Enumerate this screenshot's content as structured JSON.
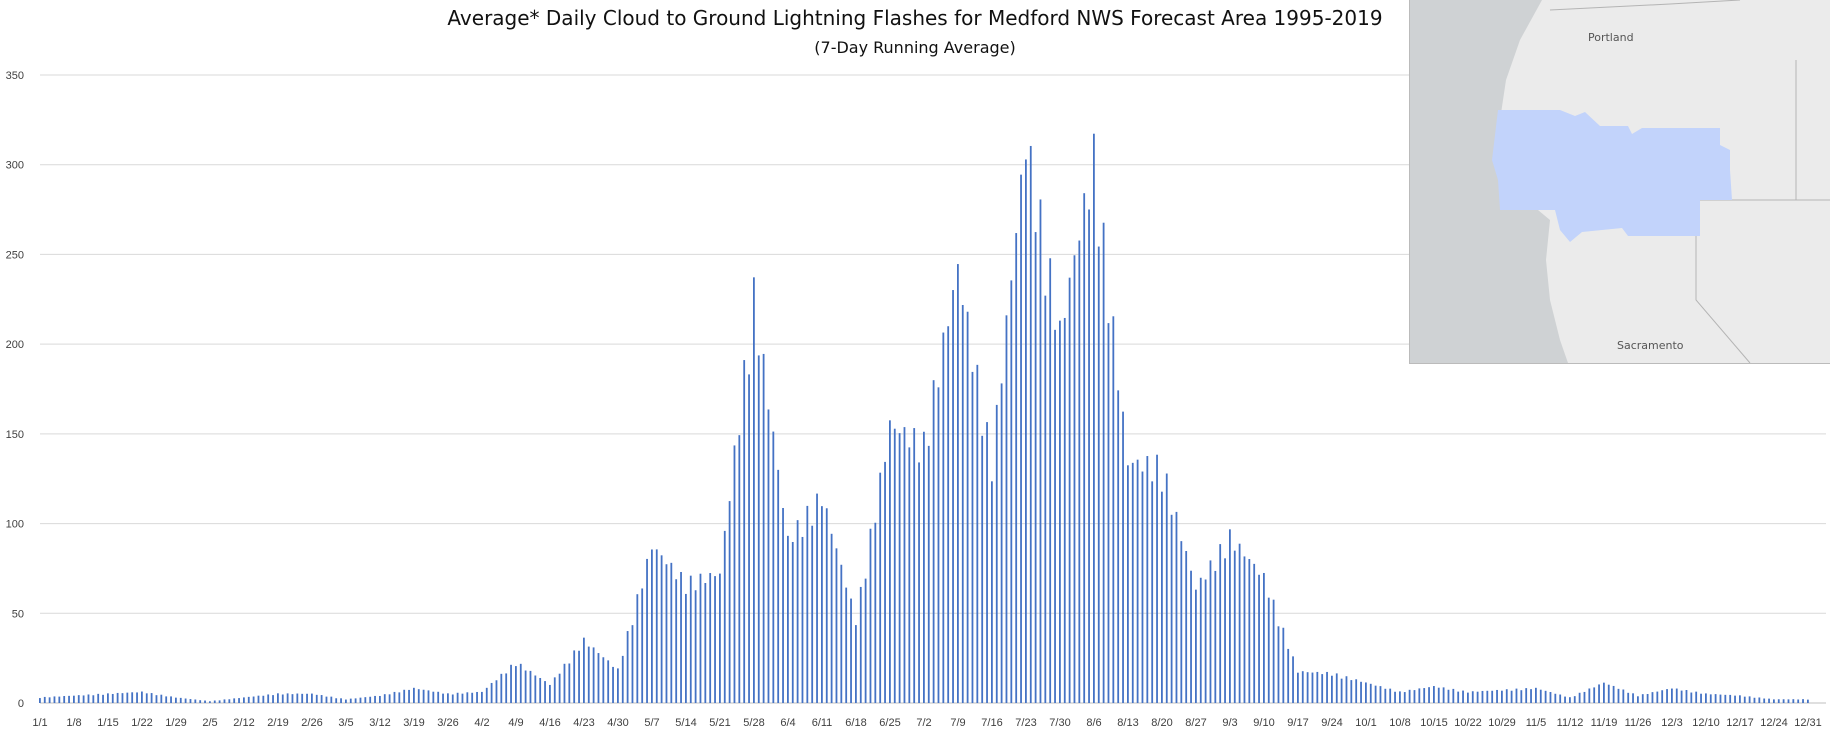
{
  "chart_data": {
    "type": "bar",
    "title": "Average* Daily Cloud to Ground Lightning Flashes for Medford NWS Forecast Area 1995-2019",
    "subtitle": "(7-Day Running Average)",
    "xlabel": "",
    "ylabel": "",
    "ylim": [
      0,
      350
    ],
    "yticks": [
      0,
      50,
      100,
      150,
      200,
      250,
      300,
      350
    ],
    "grid": true,
    "legend": "none",
    "bar_color": "#4472c4",
    "x_tick_labels": [
      "1/1",
      "1/8",
      "1/15",
      "1/22",
      "1/29",
      "2/5",
      "2/12",
      "2/19",
      "2/26",
      "3/5",
      "3/12",
      "3/19",
      "3/26",
      "4/2",
      "4/9",
      "4/16",
      "4/23",
      "4/30",
      "5/7",
      "5/14",
      "5/21",
      "5/28",
      "6/4",
      "6/11",
      "6/18",
      "6/25",
      "7/2",
      "7/9",
      "7/16",
      "7/23",
      "7/30",
      "8/6",
      "8/13",
      "8/20",
      "8/27",
      "9/3",
      "9/10",
      "9/17",
      "9/24",
      "10/1",
      "10/8",
      "10/15",
      "10/22",
      "10/29",
      "11/5",
      "11/12",
      "11/19",
      "11/26",
      "12/3",
      "12/10",
      "12/17",
      "12/24",
      "12/31"
    ],
    "weekly_values": [
      3,
      4,
      5,
      6,
      3,
      1,
      3,
      5,
      5,
      2,
      4,
      8,
      5,
      6,
      22,
      10,
      34,
      18,
      85,
      65,
      70,
      220,
      88,
      112,
      45,
      150,
      140,
      235,
      130,
      305,
      200,
      295,
      130,
      128,
      62,
      90,
      68,
      17,
      16,
      11,
      6,
      9,
      6,
      7,
      8,
      3,
      11,
      4,
      8,
      5,
      4,
      2,
      2
    ]
  },
  "map": {
    "labels": {
      "portland": "Portland",
      "sacramento": "Sacramento"
    },
    "region_color": "#c2d3fb"
  }
}
